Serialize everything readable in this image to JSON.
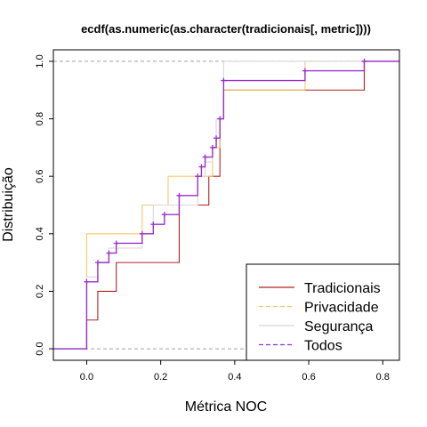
{
  "chart_data": {
    "type": "line",
    "step": true,
    "title": "ecdf(as.numeric(as.character(tradicionais[, metric])))",
    "xlabel": "Métrica NOC",
    "ylabel": "Distribuição",
    "xlim": [
      -0.09,
      0.845
    ],
    "ylim": [
      -0.04,
      1.04
    ],
    "x_ticks": [
      0.0,
      0.2,
      0.4,
      0.6,
      0.8
    ],
    "x_tick_labels": [
      "0.0",
      "0.2",
      "0.4",
      "0.6",
      "0.8"
    ],
    "y_ticks": [
      0.0,
      0.2,
      0.4,
      0.6,
      0.8,
      1.0
    ],
    "y_tick_labels": [
      "0.0",
      "0.2",
      "0.4",
      "0.6",
      "0.8",
      "1.0"
    ],
    "reference_lines_y": [
      0,
      1
    ],
    "legend_position": "bottom-right",
    "series": [
      {
        "name": "Tradicionais",
        "color": "#b22222",
        "dash": "solid",
        "x": [
          0.0,
          0.03,
          0.08,
          0.25,
          0.33,
          0.36,
          0.37,
          0.59,
          0.75
        ],
        "y": [
          0.1,
          0.2,
          0.3,
          0.5,
          0.6,
          0.8,
          0.9,
          0.9,
          1.0
        ]
      },
      {
        "name": "Privacidade",
        "color": "#f5c76a",
        "dash": "dashed",
        "x": [
          0.0,
          0.06,
          0.15,
          0.22,
          0.31,
          0.34,
          0.36,
          0.37,
          0.59,
          0.75
        ],
        "y": [
          0.4,
          0.4,
          0.5,
          0.6,
          0.6,
          0.7,
          0.8,
          0.9,
          1.0,
          1.0
        ]
      },
      {
        "name": "Segurança",
        "color": "#d8d8d8",
        "dash": "solid",
        "x": [
          0.0,
          0.03,
          0.06,
          0.08,
          0.15,
          0.18,
          0.2,
          0.25,
          0.3,
          0.31,
          0.32,
          0.34,
          0.35,
          0.36,
          0.37,
          0.75
        ],
        "y": [
          0.25,
          0.3,
          0.35,
          0.35,
          0.4,
          0.5,
          0.5,
          0.5,
          0.6,
          0.6,
          0.65,
          0.7,
          0.8,
          0.8,
          1.0,
          1.0
        ]
      },
      {
        "name": "Todos",
        "color": "#9932cc",
        "dash": "dashed",
        "marker": "+",
        "x": [
          0.0,
          0.03,
          0.06,
          0.08,
          0.15,
          0.18,
          0.21,
          0.25,
          0.3,
          0.31,
          0.32,
          0.34,
          0.35,
          0.36,
          0.37,
          0.59,
          0.75
        ],
        "y": [
          0.233,
          0.3,
          0.333,
          0.367,
          0.4,
          0.433,
          0.467,
          0.533,
          0.6,
          0.633,
          0.667,
          0.7,
          0.733,
          0.8,
          0.933,
          0.967,
          1.0
        ]
      }
    ]
  }
}
